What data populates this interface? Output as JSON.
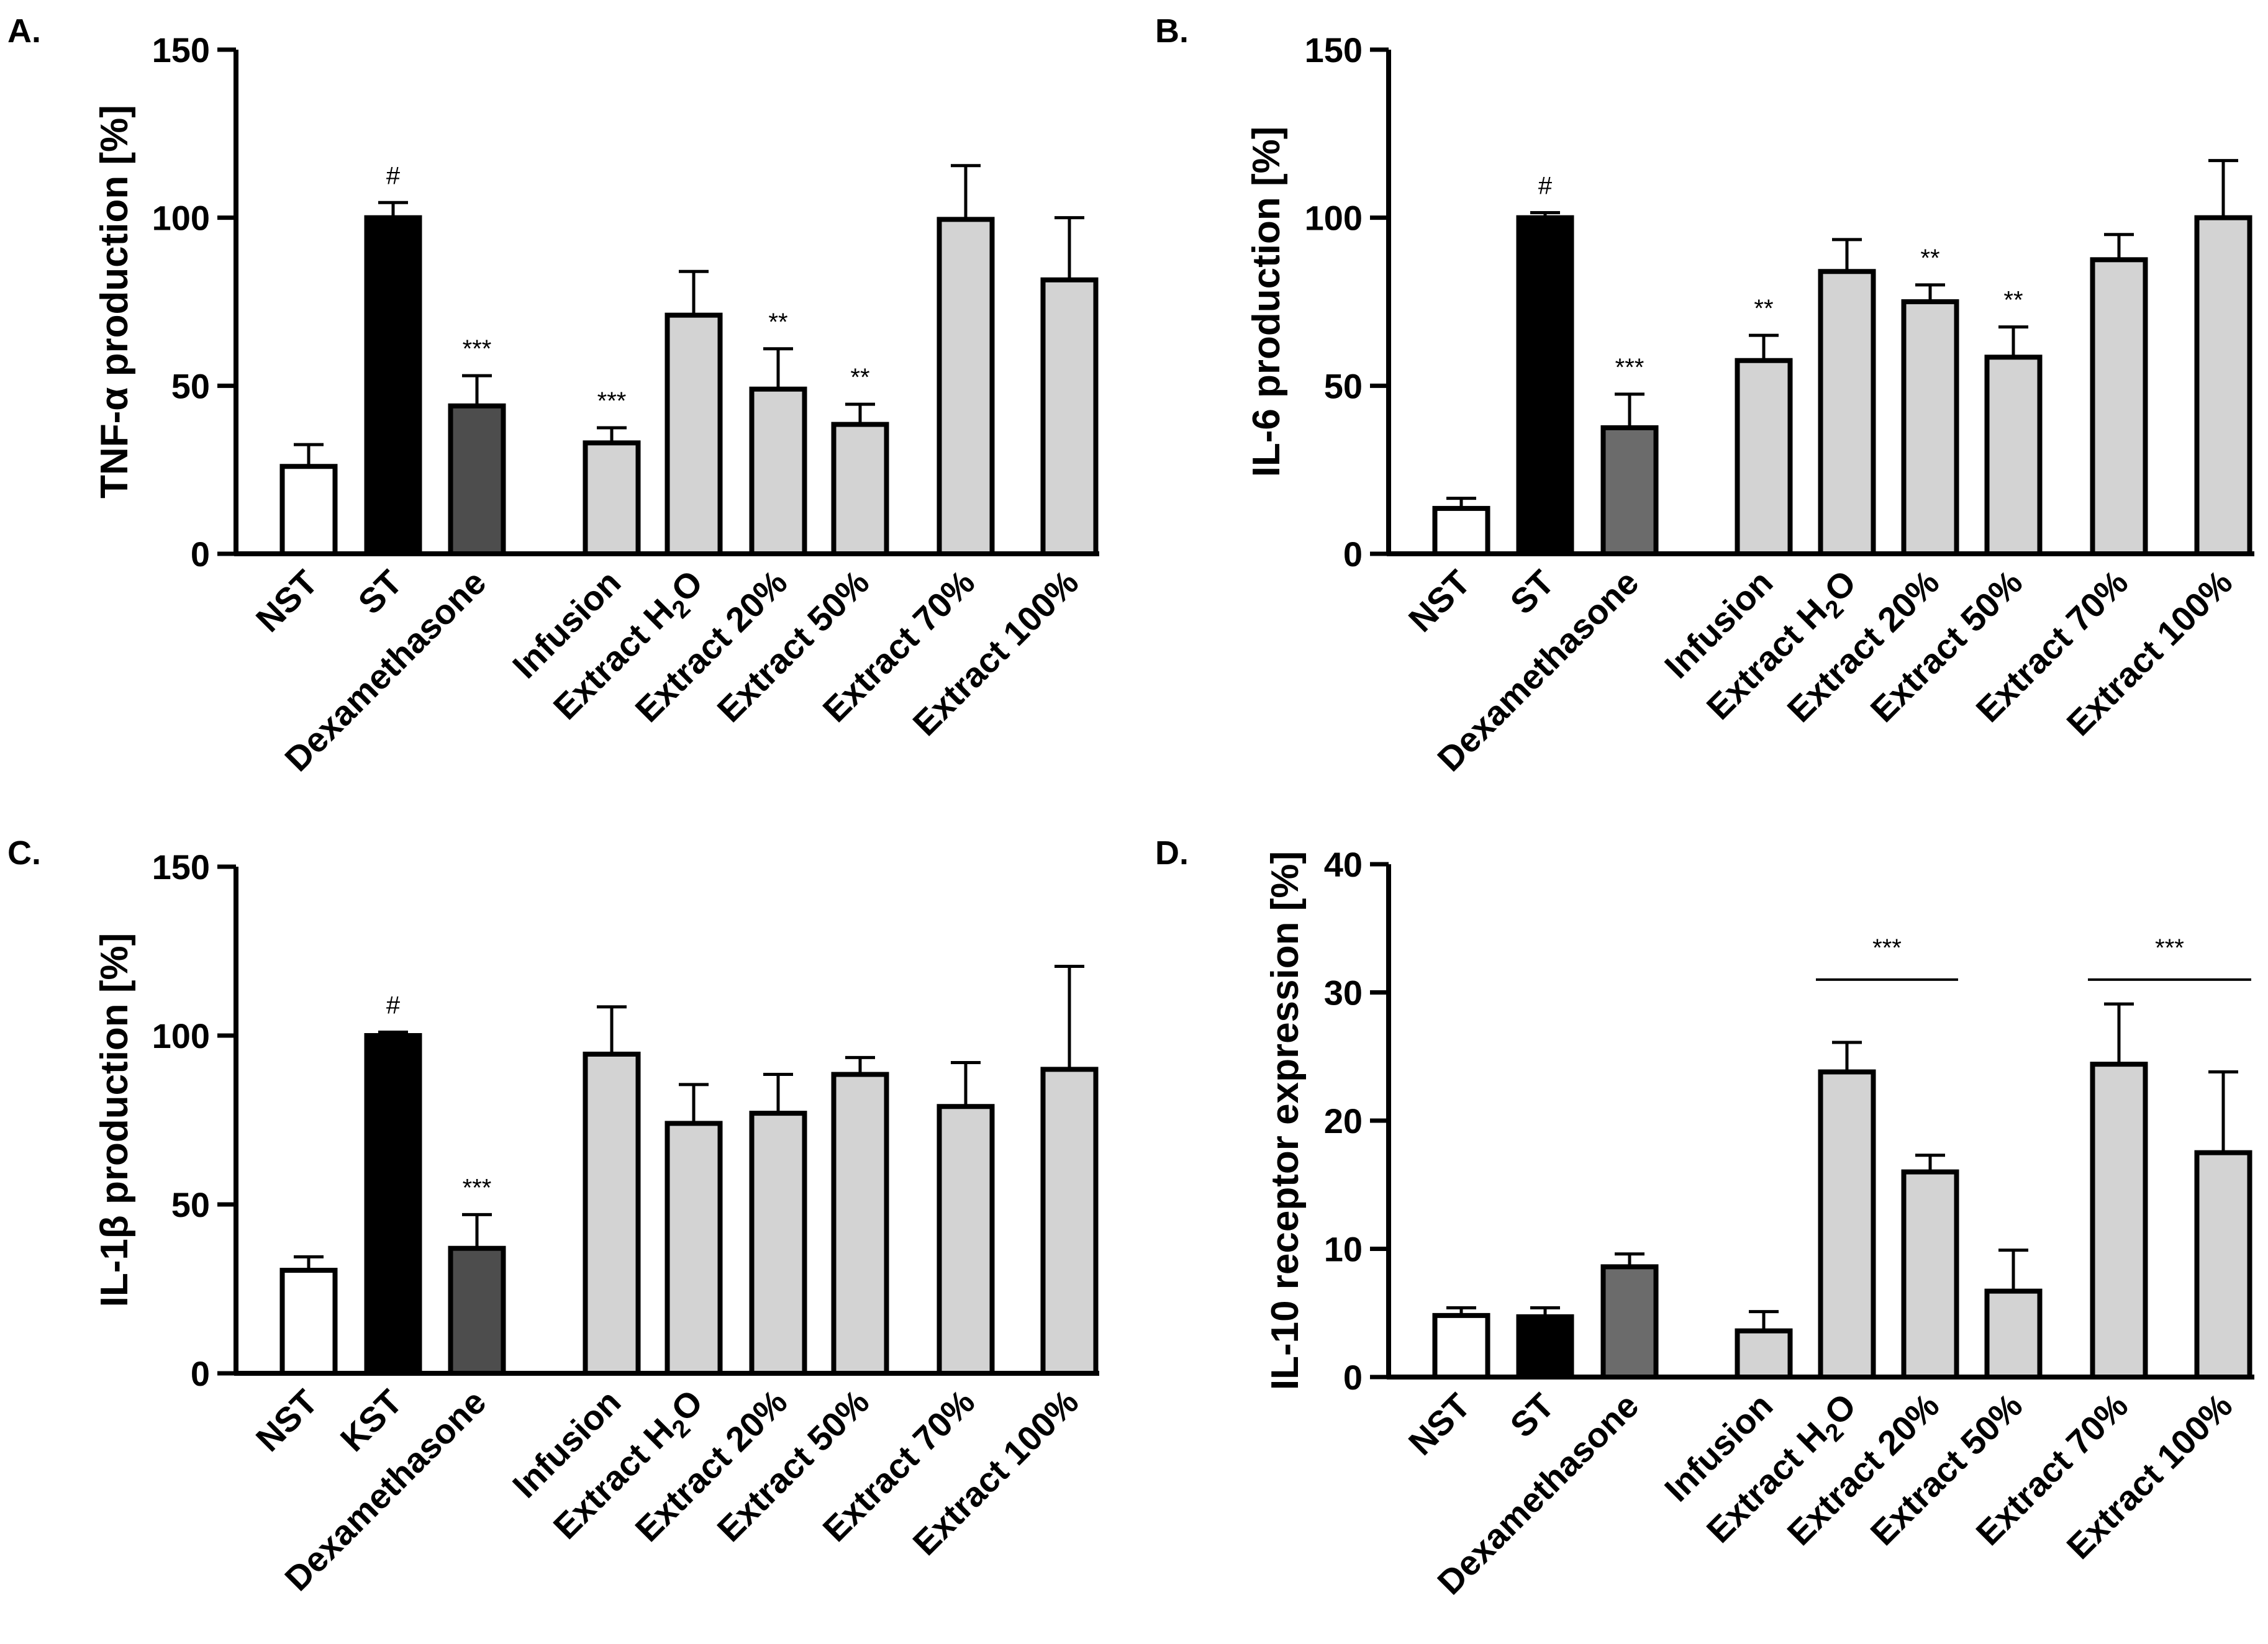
{
  "chart_data": [
    {
      "panel": "A.",
      "type": "bar",
      "ylabel": "TNF-α production [%]",
      "ylim": [
        0,
        150
      ],
      "yticks": [
        0,
        50,
        100,
        150
      ],
      "categories": [
        "NST",
        "ST",
        "Dexamethasone",
        "Infusion",
        "Extract H₂O",
        "Extract 20%",
        "Extract 50%",
        "Extract 70%",
        "Extract 100%"
      ],
      "values": [
        26,
        100,
        44,
        33,
        71,
        49,
        38.5,
        99.5,
        81.5
      ],
      "errors": [
        6.5,
        4.5,
        9,
        4.5,
        13,
        12,
        6,
        16,
        18.5
      ],
      "annotations": [
        "",
        "#",
        "***",
        "***",
        "",
        "**",
        "**",
        "",
        ""
      ],
      "bar_colors": [
        "#ffffff",
        "#000000",
        "#4d4d4d",
        "#d3d3d3",
        "#d3d3d3",
        "#d3d3d3",
        "#d3d3d3",
        "#d3d3d3",
        "#d3d3d3"
      ]
    },
    {
      "panel": "B.",
      "type": "bar",
      "ylabel": "IL-6 production [%]",
      "ylim": [
        0,
        150
      ],
      "yticks": [
        0,
        50,
        100,
        150
      ],
      "categories": [
        "NST",
        "ST",
        "Dexamethasone",
        "Infusion",
        "Extract H₂O",
        "Extract 20%",
        "Extract 50%",
        "Extract 70%",
        "Extract 100%"
      ],
      "values": [
        13.5,
        100,
        37.5,
        57.5,
        84,
        75,
        58.5,
        87.5,
        100
      ],
      "errors": [
        3,
        1.5,
        10,
        7.5,
        9.5,
        5,
        9,
        7.5,
        17
      ],
      "annotations": [
        "",
        "#",
        "***",
        "**",
        "",
        "**",
        "**",
        "",
        ""
      ],
      "bar_colors": [
        "#ffffff",
        "#000000",
        "#6b6b6b",
        "#d3d3d3",
        "#d3d3d3",
        "#d3d3d3",
        "#d3d3d3",
        "#d3d3d3",
        "#d3d3d3"
      ]
    },
    {
      "panel": "C.",
      "type": "bar",
      "ylabel": "IL-1β production [%]",
      "ylim": [
        0,
        150
      ],
      "yticks": [
        0,
        50,
        100,
        150
      ],
      "categories": [
        "NST",
        "KST",
        "Dexamethasone",
        "Infusion",
        "Extract H₂O",
        "Extract 20%",
        "Extract 50%",
        "Extract 70%",
        "Extract 100%"
      ],
      "values": [
        30.5,
        100,
        37,
        94.5,
        74,
        77,
        88.5,
        79,
        90
      ],
      "errors": [
        4,
        1,
        10,
        14,
        11.5,
        11.5,
        5,
        13,
        30.5
      ],
      "annotations": [
        "",
        "#",
        "***",
        "",
        "",
        "",
        "",
        "",
        ""
      ],
      "bar_colors": [
        "#ffffff",
        "#000000",
        "#4d4d4d",
        "#d3d3d3",
        "#d3d3d3",
        "#d3d3d3",
        "#d3d3d3",
        "#d3d3d3",
        "#d3d3d3"
      ]
    },
    {
      "panel": "D.",
      "type": "bar",
      "ylabel": "IL-10 receptor expression [%]",
      "ylim": [
        0,
        40
      ],
      "yticks": [
        0,
        10,
        20,
        30,
        40
      ],
      "categories": [
        "NST",
        "ST",
        "Dexamethasone",
        "Infusion",
        "Extract H₂O",
        "Extract 20%",
        "Extract 50%",
        "Extract 70%",
        "Extract 100%"
      ],
      "values": [
        4.8,
        4.7,
        8.6,
        3.6,
        23.8,
        16,
        6.7,
        24.4,
        17.5
      ],
      "errors": [
        0.6,
        0.7,
        1,
        1.5,
        2.3,
        1.3,
        3.2,
        4.7,
        6.3
      ],
      "annotations": [
        "",
        "",
        "",
        "",
        "",
        "",
        "",
        "",
        ""
      ],
      "brackets": [
        {
          "from": 4,
          "to": 5,
          "label": "***",
          "y": 31
        },
        {
          "from": 7,
          "to": 8,
          "label": "***",
          "y": 31
        }
      ],
      "bar_colors": [
        "#ffffff",
        "#000000",
        "#6b6b6b",
        "#d3d3d3",
        "#d3d3d3",
        "#d3d3d3",
        "#d3d3d3",
        "#d3d3d3",
        "#d3d3d3"
      ]
    }
  ]
}
